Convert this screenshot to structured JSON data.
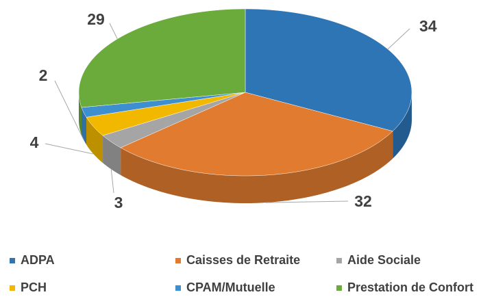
{
  "chart_data": {
    "type": "pie",
    "categories": [
      "ADPA",
      "Caisses de Retraite",
      "Aide Sociale",
      "PCH",
      "CPAM/Mutuelle",
      "Prestation de Confort"
    ],
    "values": [
      34,
      32,
      3,
      4,
      2,
      29
    ],
    "colors": [
      "#2e75b6",
      "#e07b2f",
      "#a5a5a5",
      "#f2b800",
      "#3d8fd0",
      "#6aab3c"
    ],
    "legend": "bottom"
  }
}
